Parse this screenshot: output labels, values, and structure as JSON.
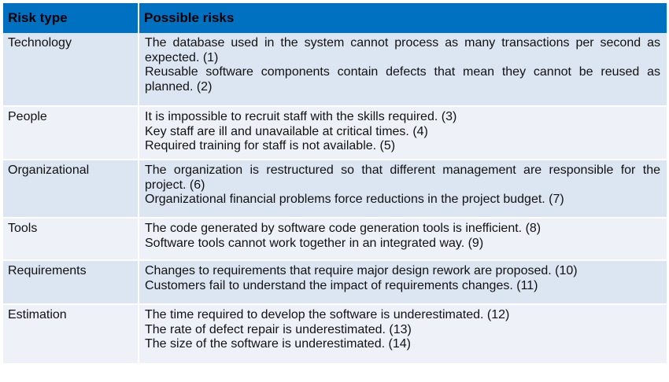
{
  "table": {
    "header": {
      "risk_type": "Risk type",
      "possible_risks": "Possible risks"
    },
    "colors": {
      "header_bg": "#0070c0",
      "row_odd": "#dce6f2",
      "row_even": "#eef2f8"
    },
    "rows": [
      {
        "type": "Technology",
        "risks": [
          "The database used in the system cannot process as many transactions per second as expected. (1)",
          "Reusable software components contain defects that mean they cannot be reused as planned. (2)"
        ]
      },
      {
        "type": "People",
        "risks": [
          "It is impossible to recruit staff with the skills required. (3)",
          "Key staff are ill and unavailable at critical times. (4)",
          "Required training for staff is not available. (5)"
        ]
      },
      {
        "type": "Organizational",
        "risks": [
          "The organization is restructured so that different management are responsible for the project. (6)",
          "Organizational financial problems force reductions in the project budget. (7)"
        ]
      },
      {
        "type": "Tools",
        "risks": [
          "The code generated by software code generation tools is inefficient. (8)",
          "Software tools cannot work together in an integrated way. (9)"
        ]
      },
      {
        "type": "Requirements",
        "risks": [
          "Changes to requirements that require major design rework are proposed. (10)",
          "Customers fail to understand the impact of requirements changes. (11)"
        ]
      },
      {
        "type": "Estimation",
        "risks": [
          "The time required to develop the software is underestimated. (12)",
          "The rate of defect repair is underestimated. (13)",
          "The size of the software is underestimated. (14)"
        ]
      }
    ]
  }
}
